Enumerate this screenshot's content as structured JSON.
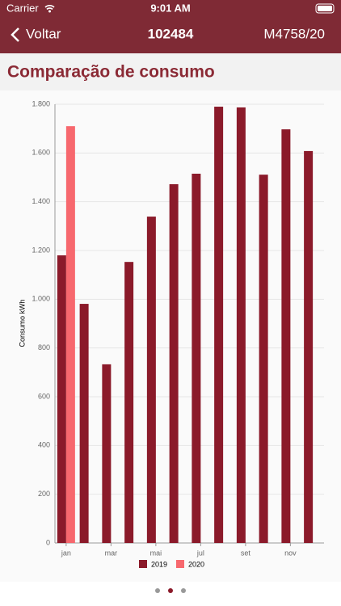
{
  "status_bar": {
    "carrier": "Carrier",
    "time": "9:01 AM"
  },
  "nav": {
    "back": "Voltar",
    "title": "102484",
    "right": "M4758/20"
  },
  "section": {
    "title": "Comparação de consumo"
  },
  "chart_data": {
    "type": "bar",
    "ylabel": "Consumo kWh",
    "categories": [
      "jan",
      null,
      "mar",
      null,
      "mai",
      null,
      "jul",
      null,
      "set",
      null,
      "nov",
      null
    ],
    "series": [
      {
        "name": "2019",
        "color": "#8b1a2a",
        "values": [
          1180,
          981,
          733,
          1153,
          1339,
          1472,
          1515,
          1790,
          1787,
          1511,
          1697,
          1608
        ]
      },
      {
        "name": "2020",
        "color": "#f7686e",
        "values": [
          1710,
          null,
          null,
          null,
          null,
          null,
          null,
          null,
          null,
          null,
          null,
          null
        ]
      }
    ],
    "ylim": [
      0,
      1800
    ],
    "yticks": [
      0,
      200,
      400,
      600,
      800,
      {
        "value": 1000,
        "label": "1.000"
      },
      {
        "value": 1200,
        "label": "1.200"
      },
      {
        "value": 1400,
        "label": "1.400"
      },
      {
        "value": 1600,
        "label": "1.600"
      },
      {
        "value": 1800,
        "label": "1.800"
      }
    ],
    "grid": true,
    "legend": "bottom"
  }
}
